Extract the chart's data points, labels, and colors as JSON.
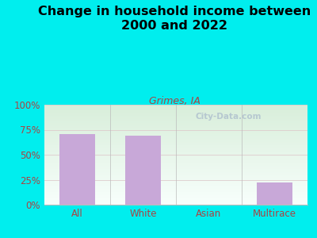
{
  "title": "Change in household income between\n2000 and 2022",
  "subtitle": "Grimes, IA",
  "categories": [
    "All",
    "White",
    "Asian",
    "Multirace"
  ],
  "values": [
    71,
    69,
    0,
    22
  ],
  "bar_color": "#C8A8D8",
  "title_fontsize": 11.5,
  "subtitle_fontsize": 9,
  "subtitle_color": "#aa4444",
  "title_color": "#000000",
  "bg_outer": "#00EEEE",
  "tick_label_color": "#aa4444",
  "axis_label_fontsize": 8.5,
  "ylim": [
    0,
    100
  ],
  "yticks": [
    0,
    25,
    50,
    75,
    100
  ],
  "ytick_labels": [
    "0%",
    "25%",
    "50%",
    "75%",
    "100%"
  ],
  "watermark": "City-Data.com",
  "watermark_color": "#aabbcc",
  "grid_color": "#dddddd"
}
